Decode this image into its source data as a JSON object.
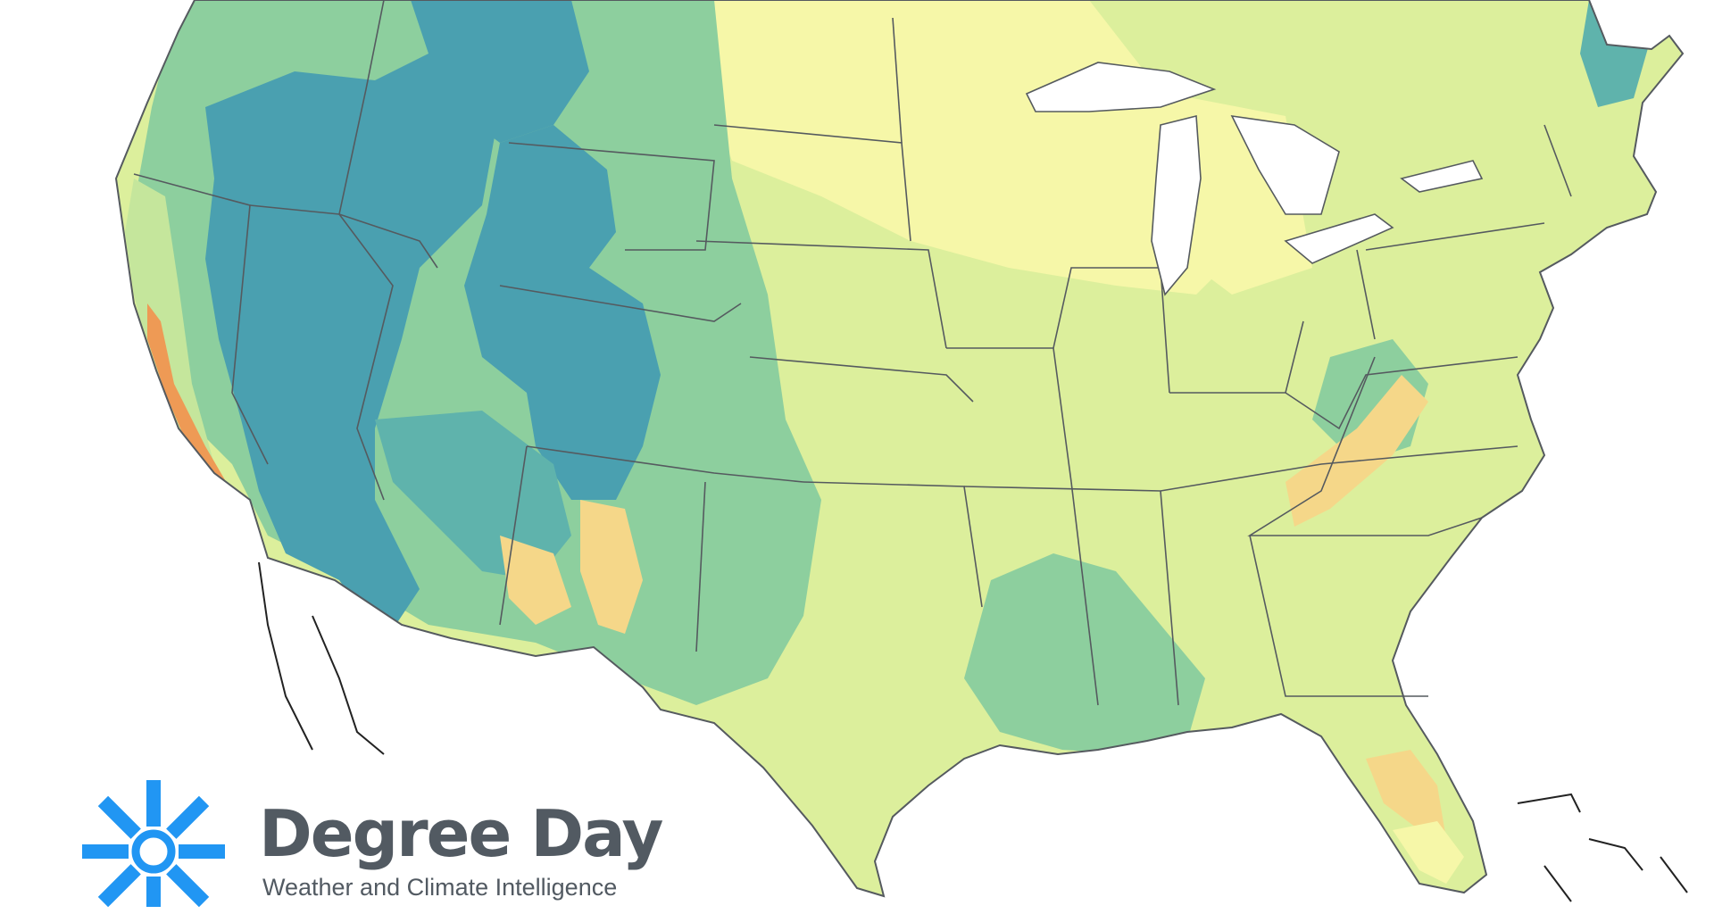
{
  "map": {
    "region": "contiguous-united-states",
    "layer": "climate-gradient",
    "colors": {
      "deep_teal": "#4aa0b0",
      "teal": "#5fb3ac",
      "green": "#8dcf9e",
      "light_green": "#c5e69c",
      "yellow_green": "#dcef9c",
      "pale_yellow": "#f6f7a8",
      "tan": "#f5d789",
      "orange": "#ee9a55",
      "red": "#d2462d",
      "border": "#555a5f",
      "water": "#ffffff"
    }
  },
  "brand": {
    "name": "Degree Day",
    "tagline": "Weather and Climate Intelligence",
    "icon": "sun-burst-icon",
    "color": "#2196f3",
    "text_color": "#525a62"
  }
}
